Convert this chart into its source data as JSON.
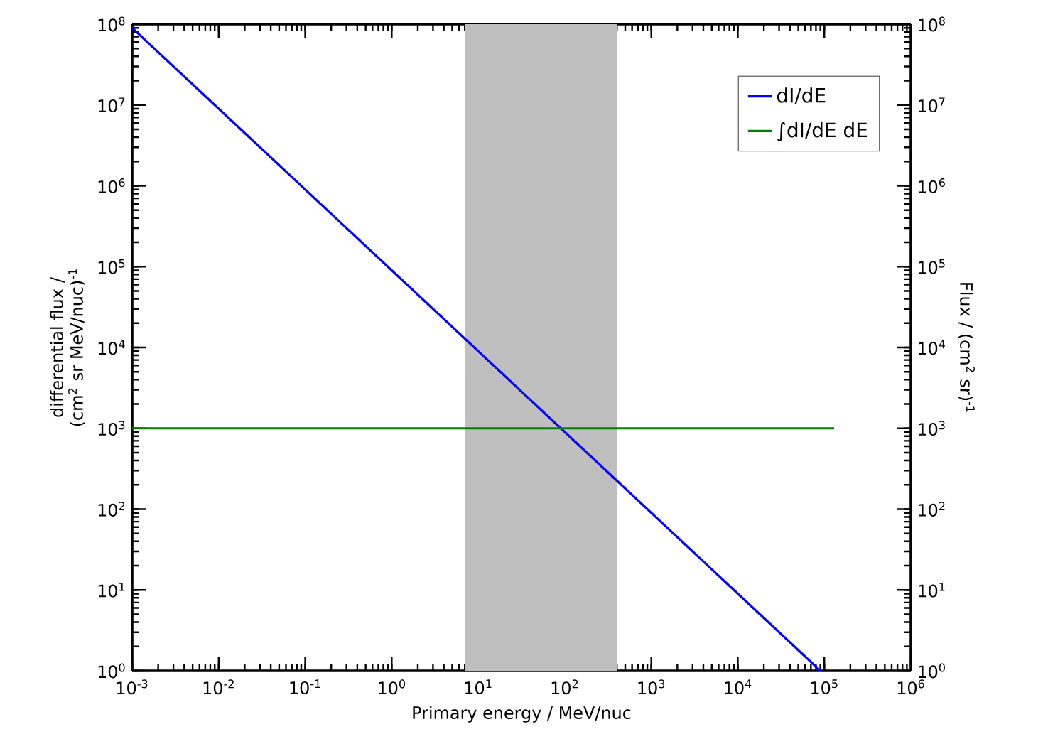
{
  "chart_data": {
    "type": "line",
    "xlabel": "Primary energy / MeV/nuc",
    "ylabel": "differential flux / (cm$^{2}$ sr MeV/nuc)$^{-1}$",
    "y2label": "Flux / (cm$^{2}$ sr)$^{-1}$",
    "log": "xy",
    "grid": false,
    "legend": "top right",
    "marker": "none",
    "line_style": "solid",
    "xlim": [
      0.001,
      1000000
    ],
    "ylim": [
      1,
      100000000
    ],
    "xticks": [
      {
        "value": 0.001,
        "label": "10$^{-3}$"
      },
      {
        "value": 0.01,
        "label": "10$^{-2}$"
      },
      {
        "value": 0.1,
        "label": "10$^{-1}$"
      },
      {
        "value": 1,
        "label": "10$^{0}$"
      },
      {
        "value": 10,
        "label": "10$^{1}$"
      },
      {
        "value": 100,
        "label": "10$^{2}$"
      },
      {
        "value": 1000,
        "label": "10$^{3}$"
      },
      {
        "value": 10000,
        "label": "10$^{4}$"
      },
      {
        "value": 100000,
        "label": "10$^{5}$"
      },
      {
        "value": 1000000,
        "label": "10$^{6}$"
      }
    ],
    "yticks": [
      {
        "value": 1,
        "label": "10$^{0}$"
      },
      {
        "value": 10,
        "label": "10$^{1}$"
      },
      {
        "value": 100,
        "label": "10$^{2}$"
      },
      {
        "value": 1000,
        "label": "10$^{3}$"
      },
      {
        "value": 10000,
        "label": "10$^{4}$"
      },
      {
        "value": 100000,
        "label": "10$^{5}$"
      },
      {
        "value": 1000000,
        "label": "10$^{6}$"
      },
      {
        "value": 10000000,
        "label": "10$^{7}$"
      },
      {
        "value": 100000000,
        "label": "10$^{8}$"
      }
    ],
    "bands": [
      {
        "axis": "x",
        "from": 7,
        "to": 400,
        "color": "#bfbfbf"
      }
    ],
    "series": [
      {
        "name": "dI/dE",
        "color": "#0000ff",
        "x": [
          0.001,
          90000
        ],
        "values": [
          90000000,
          1
        ]
      },
      {
        "name": "∫dI/dE dE",
        "color": "#008000",
        "x": [
          0.001,
          130000
        ],
        "values": [
          1000,
          1000
        ]
      }
    ]
  }
}
